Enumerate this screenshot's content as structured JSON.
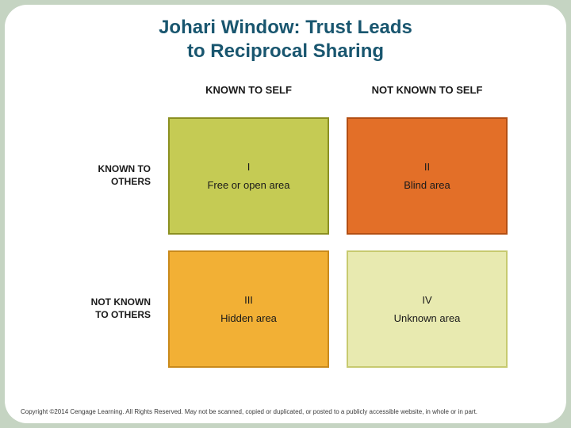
{
  "title_line1": "Johari Window:  Trust Leads",
  "title_line2": "to Reciprocal Sharing",
  "colHeaders": {
    "known": "KNOWN TO SELF",
    "notKnown": "NOT KNOWN TO SELF"
  },
  "rowHeaders": {
    "known_l1": "KNOWN TO",
    "known_l2": "OTHERS",
    "notKnown_l1": "NOT KNOWN",
    "notKnown_l2": "TO OTHERS"
  },
  "quadrants": {
    "q1": {
      "num": "I",
      "label": "Free or open area",
      "fill": "#c5cb54",
      "border": "#8b9022"
    },
    "q2": {
      "num": "II",
      "label": "Blind area",
      "fill": "#e36f28",
      "border": "#b34f14"
    },
    "q3": {
      "num": "III",
      "label": "Hidden area",
      "fill": "#f2b035",
      "border": "#c98a1c"
    },
    "q4": {
      "num": "IV",
      "label": "Unknown area",
      "fill": "#e8eab0",
      "border": "#c7ca6f"
    }
  },
  "copyright": "Copyright ©2014 Cengage Learning. All Rights Reserved. May not be scanned, copied or duplicated, or posted to a publicly accessible website, in whole or in part."
}
